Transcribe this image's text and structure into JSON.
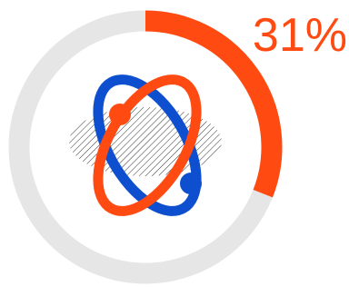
{
  "chart_data": {
    "type": "donut",
    "values": [
      31
    ],
    "value_labels": [
      "31%"
    ],
    "ylim": [
      0,
      100
    ],
    "color": "#ff4a12",
    "track_color": "#e6e6e6"
  }
}
